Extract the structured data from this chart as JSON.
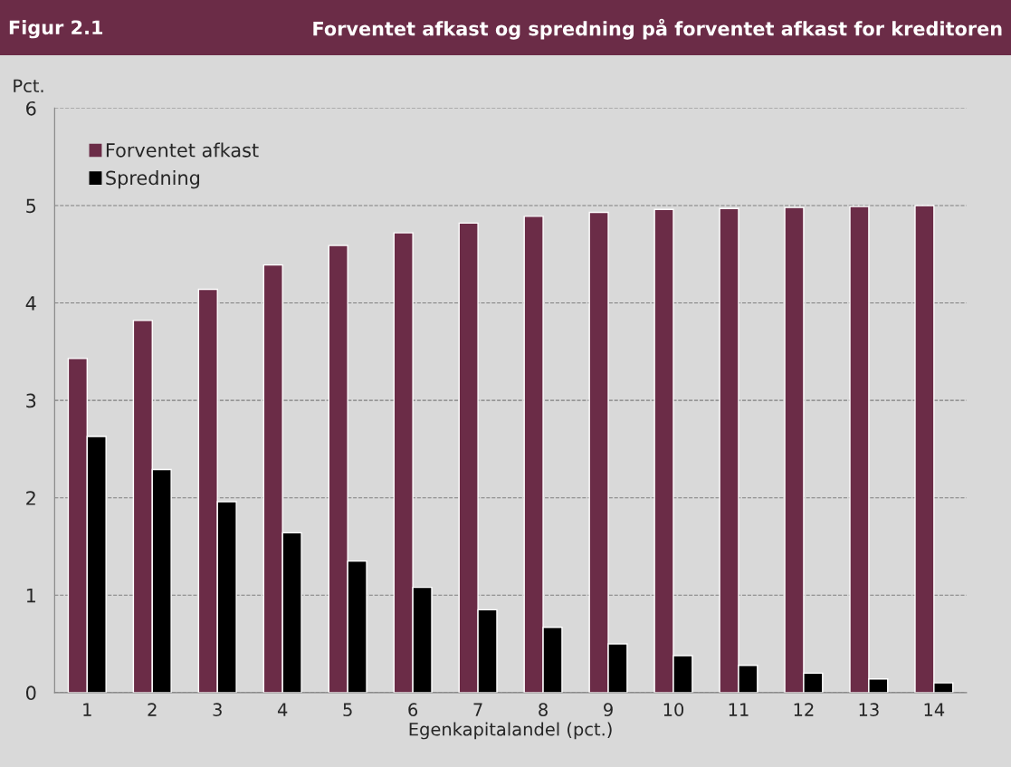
{
  "chart_data": {
    "type": "bar",
    "title": "Figur 2.1",
    "subtitle": "Forventet afkast og spredning på forventet afkast for kreditoren",
    "xlabel": "Egenkapitalandel (pct.)",
    "ylabel": "Pct.",
    "categories": [
      "1",
      "2",
      "3",
      "4",
      "5",
      "6",
      "7",
      "8",
      "9",
      "10",
      "11",
      "12",
      "13",
      "14"
    ],
    "series": [
      {
        "name": "Forventet afkast",
        "color": "#6b2c47",
        "values": [
          3.43,
          3.82,
          4.14,
          4.39,
          4.59,
          4.72,
          4.82,
          4.89,
          4.93,
          4.96,
          4.97,
          4.98,
          4.99,
          5.0
        ]
      },
      {
        "name": "Spredning",
        "color": "#000000",
        "values": [
          2.63,
          2.29,
          1.96,
          1.64,
          1.35,
          1.08,
          0.85,
          0.67,
          0.5,
          0.38,
          0.28,
          0.2,
          0.14,
          0.1
        ]
      }
    ],
    "ylim": [
      0,
      6
    ],
    "yticks": [
      0,
      1,
      2,
      3,
      4,
      5,
      6
    ],
    "grid": "y",
    "legend": "top left"
  }
}
